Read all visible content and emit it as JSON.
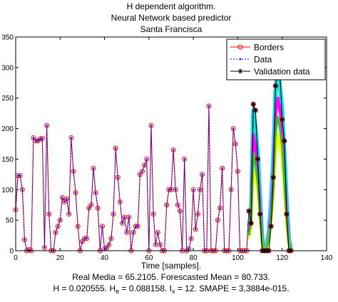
{
  "chart_data": {
    "type": "line",
    "title": [
      "H dependent algorithm.",
      "Neural Network based predictor",
      "Santa Francisca"
    ],
    "xlabel": "Time [samples].",
    "annotations": [
      {
        "parts": [
          "Real Media = 65.2105. Forescasted Mean = 80.733."
        ],
        "subscripts": []
      },
      {
        "parts": [
          "H = 0.020555. H",
          "e",
          " = 0.088158. I",
          "x",
          " = 12. SMAPE = 3,3884e-015."
        ],
        "subscripts": [
          1,
          3
        ]
      }
    ],
    "xlim": [
      0,
      140
    ],
    "xticks": [
      0,
      20,
      40,
      60,
      80,
      100,
      120,
      140
    ],
    "ylim": [
      0,
      350
    ],
    "yticks": [
      0,
      50,
      100,
      150,
      200,
      250,
      300,
      350
    ],
    "grid": false,
    "legend": "upper right",
    "series": [
      {
        "color": "#00e5e5",
        "width": 6,
        "x": [
          105,
          106,
          107,
          108,
          109,
          110,
          111,
          112,
          113,
          114,
          115,
          116,
          117,
          118,
          119,
          120,
          121,
          122,
          123,
          124
        ],
        "values": [
          40,
          60,
          230,
          200,
          160,
          90,
          20,
          0,
          10,
          30,
          80,
          150,
          260,
          290,
          270,
          230,
          160,
          80,
          20,
          0
        ]
      },
      {
        "color": "#ff00ff",
        "width": 4,
        "x": [
          105,
          106,
          107,
          108,
          109,
          110,
          111,
          112,
          113,
          114,
          115,
          116,
          117,
          118,
          119,
          120,
          121,
          122,
          123,
          124
        ],
        "values": [
          30,
          50,
          190,
          170,
          130,
          70,
          15,
          0,
          5,
          25,
          60,
          120,
          220,
          250,
          230,
          200,
          130,
          60,
          15,
          0
        ]
      },
      {
        "color": "#ffff00",
        "width": 4,
        "x": [
          105,
          106,
          107,
          108,
          109,
          110,
          111,
          112,
          113,
          114,
          115,
          116,
          117,
          118,
          119,
          120,
          121,
          122,
          123,
          124
        ],
        "values": [
          20,
          40,
          130,
          120,
          100,
          50,
          10,
          0,
          5,
          20,
          45,
          90,
          160,
          190,
          170,
          150,
          100,
          45,
          10,
          0
        ]
      },
      {
        "color": "#22cc22",
        "width": 3,
        "x": [
          105,
          106,
          107,
          108,
          109,
          110,
          111,
          112,
          113,
          114,
          115,
          116,
          117,
          118,
          119,
          120,
          121,
          122,
          123,
          124
        ],
        "values": [
          25,
          45,
          160,
          140,
          110,
          60,
          10,
          0,
          5,
          20,
          50,
          100,
          190,
          220,
          200,
          170,
          110,
          50,
          10,
          0
        ]
      },
      {
        "name": "Borders",
        "color": "#ff0000",
        "marker": "o",
        "dash": "none",
        "width": 1,
        "x": [
          0,
          1,
          2,
          3,
          4,
          5,
          6,
          7,
          8,
          9,
          10,
          11,
          12,
          13,
          14,
          15,
          16,
          17,
          18,
          19,
          20,
          21,
          22,
          23,
          24,
          25,
          26,
          27,
          28,
          29,
          30,
          31,
          32,
          33,
          34,
          35,
          36,
          37,
          38,
          39,
          40,
          41,
          42,
          43,
          44,
          45,
          46,
          47,
          48,
          49,
          50,
          51,
          52,
          53,
          54,
          55,
          56,
          57,
          58,
          59,
          60,
          61,
          62,
          63,
          64,
          65,
          66,
          67,
          68,
          69,
          70,
          71,
          72,
          73,
          74,
          75,
          76,
          77,
          78,
          79,
          80,
          81,
          82,
          83,
          84,
          85,
          86,
          87,
          88,
          89,
          90,
          91,
          92,
          93,
          94,
          95,
          96,
          97,
          98,
          99,
          100,
          101,
          102,
          103,
          104,
          105,
          106,
          107,
          108,
          109,
          110,
          111,
          112,
          113,
          114,
          115,
          116,
          117,
          118,
          119,
          120,
          121,
          122,
          123,
          124
        ],
        "values": [
          67,
          123,
          123,
          100,
          18,
          0,
          2,
          0,
          185,
          180,
          180,
          183,
          184,
          5,
          205,
          60,
          0,
          0,
          30,
          40,
          50,
          87,
          80,
          85,
          60,
          185,
          130,
          95,
          40,
          0,
          15,
          20,
          20,
          70,
          75,
          135,
          95,
          70,
          0,
          40,
          3,
          5,
          10,
          20,
          60,
          168,
          120,
          80,
          45,
          55,
          30,
          55,
          0,
          30,
          40,
          40,
          125,
          130,
          140,
          150,
          0,
          205,
          60,
          10,
          30,
          10,
          0,
          0,
          75,
          100,
          100,
          165,
          100,
          75,
          65,
          0,
          150,
          0,
          3,
          20,
          100,
          35,
          60,
          100,
          125,
          0,
          0,
          237,
          0,
          0,
          0,
          50,
          70,
          135,
          0,
          0,
          0,
          100,
          200,
          175,
          130,
          0,
          0,
          0,
          0,
          65,
          45,
          240,
          230,
          150,
          60,
          0,
          0,
          0,
          0,
          40,
          120,
          270,
          300,
          290,
          215,
          180,
          60,
          0,
          0
        ]
      },
      {
        "name": "Data",
        "color": "#0000ff",
        "marker": "dot",
        "dash": "2,2",
        "width": 1,
        "x": [
          0,
          1,
          2,
          3,
          4,
          5,
          6,
          7,
          8,
          9,
          10,
          11,
          12,
          13,
          14,
          15,
          16,
          17,
          18,
          19,
          20,
          21,
          22,
          23,
          24,
          25,
          26,
          27,
          28,
          29,
          30,
          31,
          32,
          33,
          34,
          35,
          36,
          37,
          38,
          39,
          40,
          41,
          42,
          43,
          44,
          45,
          46,
          47,
          48,
          49,
          50,
          51,
          52,
          53,
          54,
          55,
          56,
          57,
          58,
          59,
          60,
          61,
          62,
          63,
          64,
          65,
          66,
          67,
          68,
          69,
          70,
          71,
          72,
          73,
          74,
          75,
          76,
          77,
          78,
          79,
          80,
          81,
          82,
          83,
          84,
          85,
          86,
          87,
          88,
          89,
          90,
          91,
          92,
          93,
          94,
          95,
          96,
          97,
          98,
          99,
          100,
          101,
          102,
          103,
          104,
          105
        ],
        "values": [
          67,
          123,
          123,
          100,
          18,
          0,
          2,
          0,
          185,
          180,
          180,
          183,
          184,
          5,
          205,
          60,
          0,
          0,
          30,
          40,
          50,
          87,
          80,
          85,
          60,
          185,
          130,
          95,
          40,
          0,
          15,
          20,
          20,
          70,
          75,
          135,
          95,
          70,
          0,
          40,
          3,
          5,
          10,
          20,
          60,
          168,
          120,
          80,
          45,
          55,
          30,
          55,
          0,
          30,
          40,
          40,
          125,
          130,
          140,
          150,
          0,
          205,
          60,
          10,
          30,
          10,
          0,
          0,
          75,
          100,
          100,
          165,
          100,
          75,
          65,
          0,
          150,
          0,
          3,
          20,
          100,
          35,
          60,
          100,
          125,
          0,
          0,
          237,
          0,
          0,
          0,
          50,
          70,
          135,
          0,
          0,
          0,
          100,
          200,
          175,
          130,
          0,
          0,
          0,
          0,
          65
        ]
      },
      {
        "name": "Validation data",
        "color": "#000000",
        "marker": "star",
        "dash": "none",
        "width": 1,
        "x": [
          105,
          106,
          107,
          108,
          109,
          110,
          111,
          112,
          113,
          114,
          115,
          116,
          117,
          118,
          119,
          120,
          121,
          122,
          123,
          124
        ],
        "values": [
          65,
          45,
          240,
          230,
          150,
          60,
          0,
          0,
          0,
          0,
          40,
          120,
          270,
          300,
          290,
          215,
          180,
          60,
          0,
          0
        ]
      }
    ]
  }
}
